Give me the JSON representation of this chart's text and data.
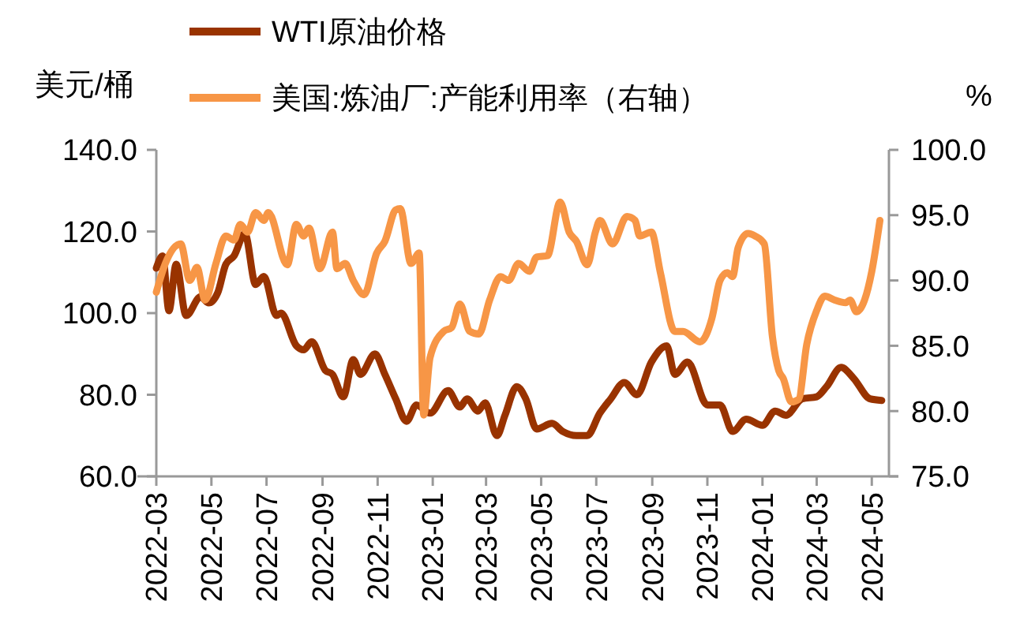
{
  "chart_data": {
    "type": "line",
    "ylabel": "美元/桶",
    "y2label": "%",
    "legend": "top",
    "line_style": "solid",
    "xlim": [
      "2022-03-01",
      "2024-05-20"
    ],
    "xticks": [
      "2022-03",
      "2022-05",
      "2022-07",
      "2022-09",
      "2022-11",
      "2023-01",
      "2023-03",
      "2023-05",
      "2023-07",
      "2023-09",
      "2023-11",
      "2024-01",
      "2024-03",
      "2024-05"
    ],
    "ylim": [
      60,
      140
    ],
    "yticks": [
      {
        "value": 60,
        "label": "60.0"
      },
      {
        "value": 80,
        "label": "80.0"
      },
      {
        "value": 100,
        "label": "100.0"
      },
      {
        "value": 120,
        "label": "120.0"
      },
      {
        "value": 140,
        "label": "140.0"
      }
    ],
    "y2lim": [
      75,
      100
    ],
    "y2ticks": [
      {
        "value": 75,
        "label": "75.0"
      },
      {
        "value": 80,
        "label": "80.0"
      },
      {
        "value": 85,
        "label": "85.0"
      },
      {
        "value": 90,
        "label": "90.0"
      },
      {
        "value": 95,
        "label": "95.0"
      },
      {
        "value": 100,
        "label": "100.0"
      }
    ],
    "series": [
      {
        "name": "WTI原油价格",
        "color": "#993300",
        "x": [
          "2022-03-01",
          "2022-03-08",
          "2022-03-15",
          "2022-03-23",
          "2022-04-03",
          "2022-04-19",
          "2022-04-28",
          "2022-05-08",
          "2022-05-17",
          "2022-05-26",
          "2022-06-07",
          "2022-06-19",
          "2022-06-28",
          "2022-07-12",
          "2022-07-17",
          "2022-08-03",
          "2022-08-11",
          "2022-08-20",
          "2022-09-04",
          "2022-09-12",
          "2022-09-24",
          "2022-10-05",
          "2022-10-13",
          "2022-10-29",
          "2022-11-09",
          "2022-11-21",
          "2022-12-03",
          "2022-12-14",
          "2022-12-29",
          "2023-01-18",
          "2023-01-31",
          "2023-02-08",
          "2023-02-20",
          "2023-02-28",
          "2023-03-13",
          "2023-03-22",
          "2023-04-04",
          "2023-04-14",
          "2023-04-26",
          "2023-05-13",
          "2023-05-25",
          "2023-06-09",
          "2023-06-21",
          "2023-07-05",
          "2023-07-17",
          "2023-08-01",
          "2023-08-15",
          "2023-08-31",
          "2023-09-17",
          "2023-09-26",
          "2023-10-10",
          "2023-11-01",
          "2023-11-15",
          "2023-11-29",
          "2023-12-14",
          "2024-01-01",
          "2024-01-15",
          "2024-01-27",
          "2024-02-14",
          "2024-03-01",
          "2024-03-12",
          "2024-03-28",
          "2024-04-11",
          "2024-04-29",
          "2024-05-12"
        ],
        "values": [
          111,
          114,
          100.6,
          112,
          99.4,
          104,
          102.5,
          105,
          112,
          114,
          119.5,
          107,
          109,
          99.4,
          100,
          92,
          91,
          93,
          86,
          85,
          79.5,
          88.6,
          85,
          90,
          85,
          79,
          73.5,
          77.5,
          75.5,
          81,
          77,
          79,
          76,
          78,
          70,
          75,
          82,
          79,
          71.6,
          73,
          71,
          70,
          70,
          75.5,
          79,
          83,
          80,
          88,
          92,
          85,
          88,
          77.5,
          77.5,
          71,
          74,
          72.5,
          76,
          75,
          79,
          79.5,
          82,
          86.7,
          84,
          79,
          78.6
        ]
      },
      {
        "name": "美国:炼油厂:产能利用率（右轴）",
        "color": "#f79646",
        "axis": "y2",
        "x": [
          "2022-03-01",
          "2022-03-11",
          "2022-03-28",
          "2022-04-07",
          "2022-04-15",
          "2022-04-24",
          "2022-05-06",
          "2022-05-17",
          "2022-05-26",
          "2022-06-02",
          "2022-06-10",
          "2022-06-19",
          "2022-06-28",
          "2022-07-03",
          "2022-07-24",
          "2022-08-03",
          "2022-08-11",
          "2022-08-17",
          "2022-08-29",
          "2022-09-12",
          "2022-09-17",
          "2022-09-26",
          "2022-10-05",
          "2022-10-17",
          "2022-10-31",
          "2022-11-09",
          "2022-11-21",
          "2022-11-26",
          "2022-12-08",
          "2022-12-17",
          "2022-12-22",
          "2022-12-29",
          "2023-01-13",
          "2023-01-22",
          "2023-01-31",
          "2023-02-11",
          "2023-02-21",
          "2023-03-05",
          "2023-03-17",
          "2023-03-26",
          "2023-04-06",
          "2023-04-18",
          "2023-04-26",
          "2023-05-08",
          "2023-05-22",
          "2023-06-01",
          "2023-06-09",
          "2023-06-21",
          "2023-06-30",
          "2023-07-05",
          "2023-07-19",
          "2023-08-04",
          "2023-08-13",
          "2023-08-18",
          "2023-08-31",
          "2023-09-10",
          "2023-09-26",
          "2023-10-05",
          "2023-10-24",
          "2023-11-06",
          "2023-11-15",
          "2023-11-23",
          "2023-11-29",
          "2023-12-05",
          "2023-12-16",
          "2023-12-24",
          "2024-01-03",
          "2024-01-12",
          "2024-01-19",
          "2024-01-24",
          "2024-02-02",
          "2024-02-10",
          "2024-02-19",
          "2024-03-01",
          "2024-03-10",
          "2024-03-21",
          "2024-04-02",
          "2024-04-07",
          "2024-04-14",
          "2024-04-23",
          "2024-05-01",
          "2024-05-10"
        ],
        "values": [
          89.1,
          91.3,
          92.8,
          90,
          91,
          88.5,
          91.3,
          93.4,
          93.1,
          94.3,
          93.7,
          95.2,
          94.6,
          95.2,
          91.2,
          94.3,
          93.4,
          94,
          90.9,
          93.7,
          90.9,
          91.3,
          90,
          88.9,
          92.1,
          93,
          95.4,
          95.5,
          91.3,
          92.1,
          79.7,
          84.1,
          86.1,
          86.4,
          88.2,
          86.1,
          85.9,
          88.5,
          90.3,
          90,
          91.3,
          90.7,
          91.8,
          91.9,
          96,
          93.7,
          93,
          91.2,
          93.7,
          94.6,
          92.8,
          94.9,
          94.6,
          93.4,
          93.7,
          90.6,
          86.1,
          86.1,
          85.3,
          87.1,
          90,
          90.6,
          90.3,
          92.5,
          93.6,
          93.4,
          92.8,
          85.7,
          83.1,
          82.5,
          80.7,
          80.9,
          85.1,
          87.7,
          88.8,
          88.5,
          88.3,
          88.5,
          87.6,
          88.5,
          90.7,
          94.6
        ]
      }
    ]
  }
}
